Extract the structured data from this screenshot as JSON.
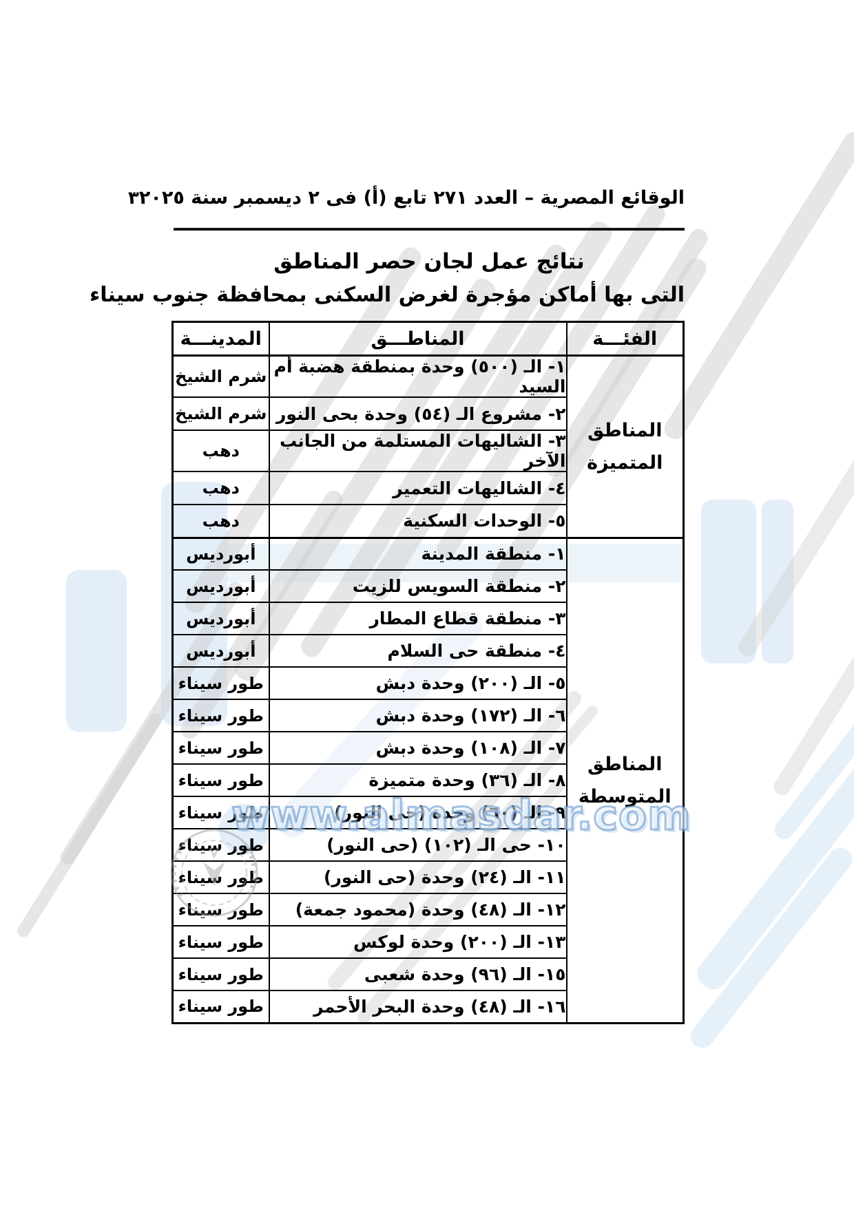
{
  "masthead": {
    "gazette_line": "الوقائع المصرية – العدد ٢٧١ تابع (أ) فى ٢ ديسمبر سنة ٢٠٢٥",
    "page_number": "٣"
  },
  "titles": {
    "line1": "نتائج عمل لجان حصر المناطق",
    "line2": "التى بها أماكن مؤجرة لغرض السكنى بمحافظة جنوب سيناء"
  },
  "table": {
    "columns": {
      "category": "الفئـــة",
      "areas": "المناطـــق",
      "city": "المدينـــة"
    },
    "sections": [
      {
        "category_line1": "المناطق",
        "category_line2": "المتميزة",
        "rows": [
          {
            "area": "١- الـ (٥٠٠) وحدة بمنطقة هضبة أم السيد",
            "city": "شرم الشيخ"
          },
          {
            "area": "٢- مشروع الـ (٥٤) وحدة بحى النور",
            "city": "شرم الشيخ"
          },
          {
            "area": "٣- الشاليهات المستلمة من الجانب الآخر",
            "city": "دهب"
          },
          {
            "area": "٤- الشاليهات التعمير",
            "city": "دهب"
          },
          {
            "area": "٥- الوحدات السكنية",
            "city": "دهب"
          }
        ]
      },
      {
        "category_line1": "المناطق",
        "category_line2": "المتوسطة",
        "rows": [
          {
            "area": "١- منطقة المدينة",
            "city": "أبورديس"
          },
          {
            "area": "٢- منطقة السويس للزيت",
            "city": "أبورديس"
          },
          {
            "area": "٣- منطقة قطاع المطار",
            "city": "أبورديس"
          },
          {
            "area": "٤- منطقة حى السلام",
            "city": "أبورديس"
          },
          {
            "area": "٥- الـ (٢٠٠) وحدة دبش",
            "city": "طور سيناء"
          },
          {
            "area": "٦- الـ (١٧٢) وحدة دبش",
            "city": "طور سيناء"
          },
          {
            "area": "٧- الـ (١٠٨) وحدة دبش",
            "city": "طور سيناء"
          },
          {
            "area": "٨- الـ (٣٦) وحدة متميزة",
            "city": "طور سيناء"
          },
          {
            "area": "٩- الـ (٦٠) وحدة (حى النور)",
            "city": "طور سيناء"
          },
          {
            "area": "١٠- حى الـ (١٠٢) (حى النور)",
            "city": "طور سيناء"
          },
          {
            "area": "١١- الـ (٢٤) وحدة (حى النور)",
            "city": "طور سيناء"
          },
          {
            "area": "١٢- الـ (٤٨) وحدة (محمود جمعة)",
            "city": "طور سيناء"
          },
          {
            "area": "١٣- الـ (٢٠٠) وحدة لوكس",
            "city": "طور سيناء"
          },
          {
            "area": "١٥- الـ (٩٦) وحدة شعبى",
            "city": "طور سيناء"
          },
          {
            "area": "١٦- الـ (٤٨) وحدة البحر الأحمر",
            "city": "طور سيناء"
          }
        ]
      }
    ]
  },
  "watermarks": {
    "url": "www.almasdar.com",
    "colors": {
      "light_blue": "#d9e8f5",
      "gray": "#cecece",
      "url_blue_stroke": "#6e9bcd"
    }
  }
}
